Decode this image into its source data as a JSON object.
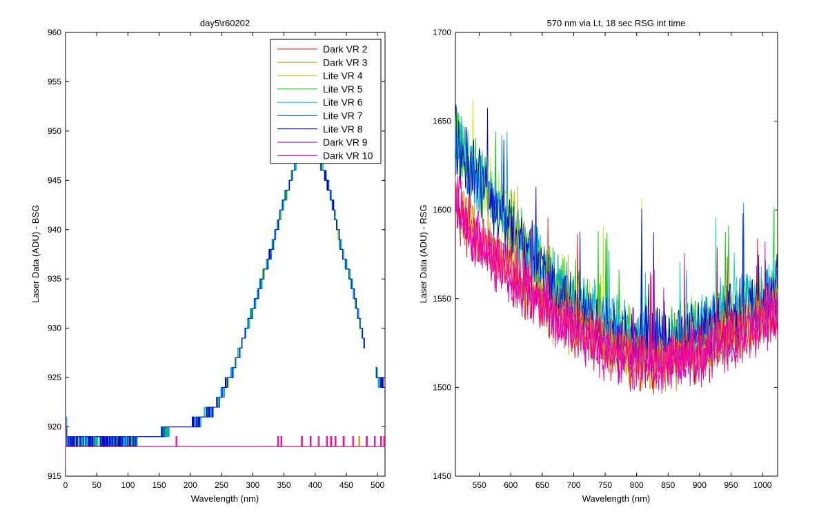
{
  "chart_data": [
    {
      "type": "line",
      "title": "day5\\r60202",
      "xlabel": "Wavelength (nm)",
      "ylabel": "Laser Data (ADU) - BSG",
      "xlim": [
        0,
        512
      ],
      "ylim": [
        915,
        960
      ],
      "xticks": [
        "0",
        "50",
        "100",
        "150",
        "200",
        "250",
        "300",
        "350",
        "400",
        "450",
        "500"
      ],
      "yticks": [
        "915",
        "920",
        "925",
        "930",
        "935",
        "940",
        "945",
        "950",
        "955",
        "960"
      ],
      "legend_position": "top-right",
      "legend": [
        {
          "name": "Dark VR 2",
          "color": "#ff0000"
        },
        {
          "name": "Dark VR 3",
          "color": "#d2a000"
        },
        {
          "name": "Lite VR 4",
          "color": "#c8e600"
        },
        {
          "name": "Lite VR 5",
          "color": "#00d200"
        },
        {
          "name": "Lite VR 6",
          "color": "#00d2c8"
        },
        {
          "name": "Lite VR 7",
          "color": "#0096ff"
        },
        {
          "name": "Lite VR 8",
          "color": "#0000c8"
        },
        {
          "name": "Dark VR 9",
          "color": "#c800c8"
        },
        {
          "name": "Dark VR 10",
          "color": "#ff00a0"
        }
      ],
      "lite_profile": {
        "x": [
          0,
          20,
          150,
          170,
          200,
          240,
          270,
          300,
          330,
          350,
          365,
          375,
          390,
          400,
          410,
          420,
          430,
          440,
          460,
          480,
          500,
          510
        ],
        "y": [
          919,
          919,
          919,
          920,
          920,
          922,
          926,
          932,
          938,
          943,
          946,
          948,
          948.5,
          948,
          946.5,
          944.5,
          942,
          938.5,
          934,
          928,
          925,
          924
        ]
      },
      "dark_baseline": 918,
      "dark_spikes_x": [
        177,
        340,
        345,
        378,
        392,
        405,
        418,
        425,
        432,
        445,
        460,
        470,
        482,
        495,
        505,
        510
      ]
    },
    {
      "type": "line",
      "title": "570 nm via Lt, 18 sec RSG int time",
      "xlabel": "Wavelength (nm)",
      "ylabel": "Laser Data (ADU) - RSG",
      "xlim": [
        512,
        1024
      ],
      "ylim": [
        1450,
        1700
      ],
      "xticks": [
        "550",
        "600",
        "650",
        "700",
        "750",
        "800",
        "850",
        "900",
        "950",
        "1000"
      ],
      "yticks": [
        "1450",
        "1500",
        "1550",
        "1600",
        "1650",
        "1700"
      ],
      "series": [
        {
          "name": "Dark VR 2",
          "color": "#ff0000"
        },
        {
          "name": "Dark VR 3",
          "color": "#d2a000"
        },
        {
          "name": "Lite VR 4",
          "color": "#c8e600"
        },
        {
          "name": "Lite VR 5",
          "color": "#00d200"
        },
        {
          "name": "Lite VR 6",
          "color": "#00d2c8"
        },
        {
          "name": "Lite VR 7",
          "color": "#0096ff"
        },
        {
          "name": "Lite VR 8",
          "color": "#0000c8"
        },
        {
          "name": "Dark VR 9",
          "color": "#c800c8"
        },
        {
          "name": "Dark VR 10",
          "color": "#ff00a0"
        }
      ],
      "trend_lite": {
        "x": [
          512,
          530,
          560,
          600,
          650,
          700,
          750,
          800,
          850,
          900,
          950,
          1000,
          1024
        ],
        "y": [
          1640,
          1625,
          1612,
          1590,
          1565,
          1548,
          1535,
          1525,
          1525,
          1532,
          1540,
          1548,
          1555
        ]
      },
      "trend_dark": {
        "x": [
          512,
          530,
          560,
          600,
          650,
          700,
          750,
          800,
          850,
          900,
          950,
          1000,
          1024
        ],
        "y": [
          1605,
          1592,
          1578,
          1565,
          1548,
          1535,
          1522,
          1515,
          1515,
          1520,
          1528,
          1538,
          1545
        ]
      }
    }
  ]
}
